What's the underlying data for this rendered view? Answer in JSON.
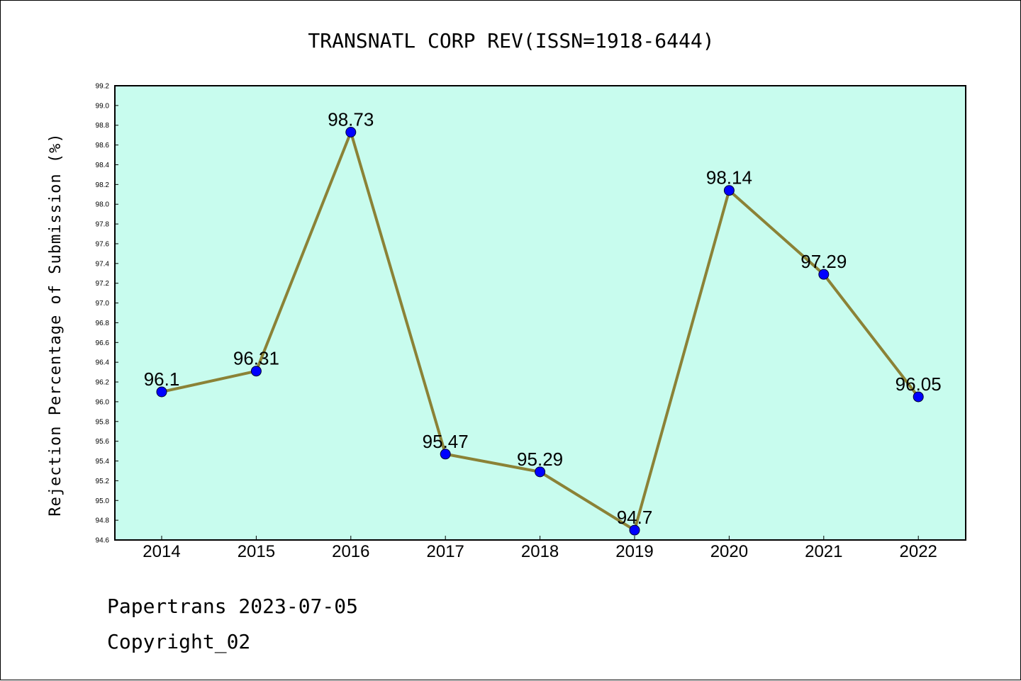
{
  "footer": {
    "line1": "Papertrans 2023-07-05",
    "line2": "Copyright_02"
  },
  "chart_data": {
    "type": "line",
    "title": "TRANSNATL CORP REV(ISSN=1918-6444)",
    "xlabel": "",
    "ylabel": "Rejection Percentage of Submission (%)",
    "categories": [
      "2014",
      "2015",
      "2016",
      "2017",
      "2018",
      "2019",
      "2020",
      "2021",
      "2022"
    ],
    "series": [
      {
        "values": [
          96.1,
          96.31,
          98.73,
          95.47,
          95.29,
          94.7,
          98.14,
          97.29,
          96.05
        ]
      }
    ],
    "data_labels": [
      "96.1",
      "96.31",
      "98.73",
      "95.47",
      "95.29",
      "94.7",
      "98.14",
      "97.29",
      "96.05"
    ],
    "ylim": [
      94.6,
      99.2
    ],
    "yticks": [
      "94.6",
      "94.8",
      "95.0",
      "95.2",
      "95.4",
      "95.6",
      "95.8",
      "96.0",
      "96.2",
      "96.4",
      "96.6",
      "96.8",
      "97.0",
      "97.2",
      "97.4",
      "97.6",
      "97.8",
      "98.0",
      "98.2",
      "98.4",
      "98.6",
      "98.8",
      "99.0",
      "99.2"
    ],
    "grid": false,
    "colors": {
      "plot_background": "#c8fcee",
      "line": "#8b8236",
      "marker": "#0000ff"
    }
  }
}
